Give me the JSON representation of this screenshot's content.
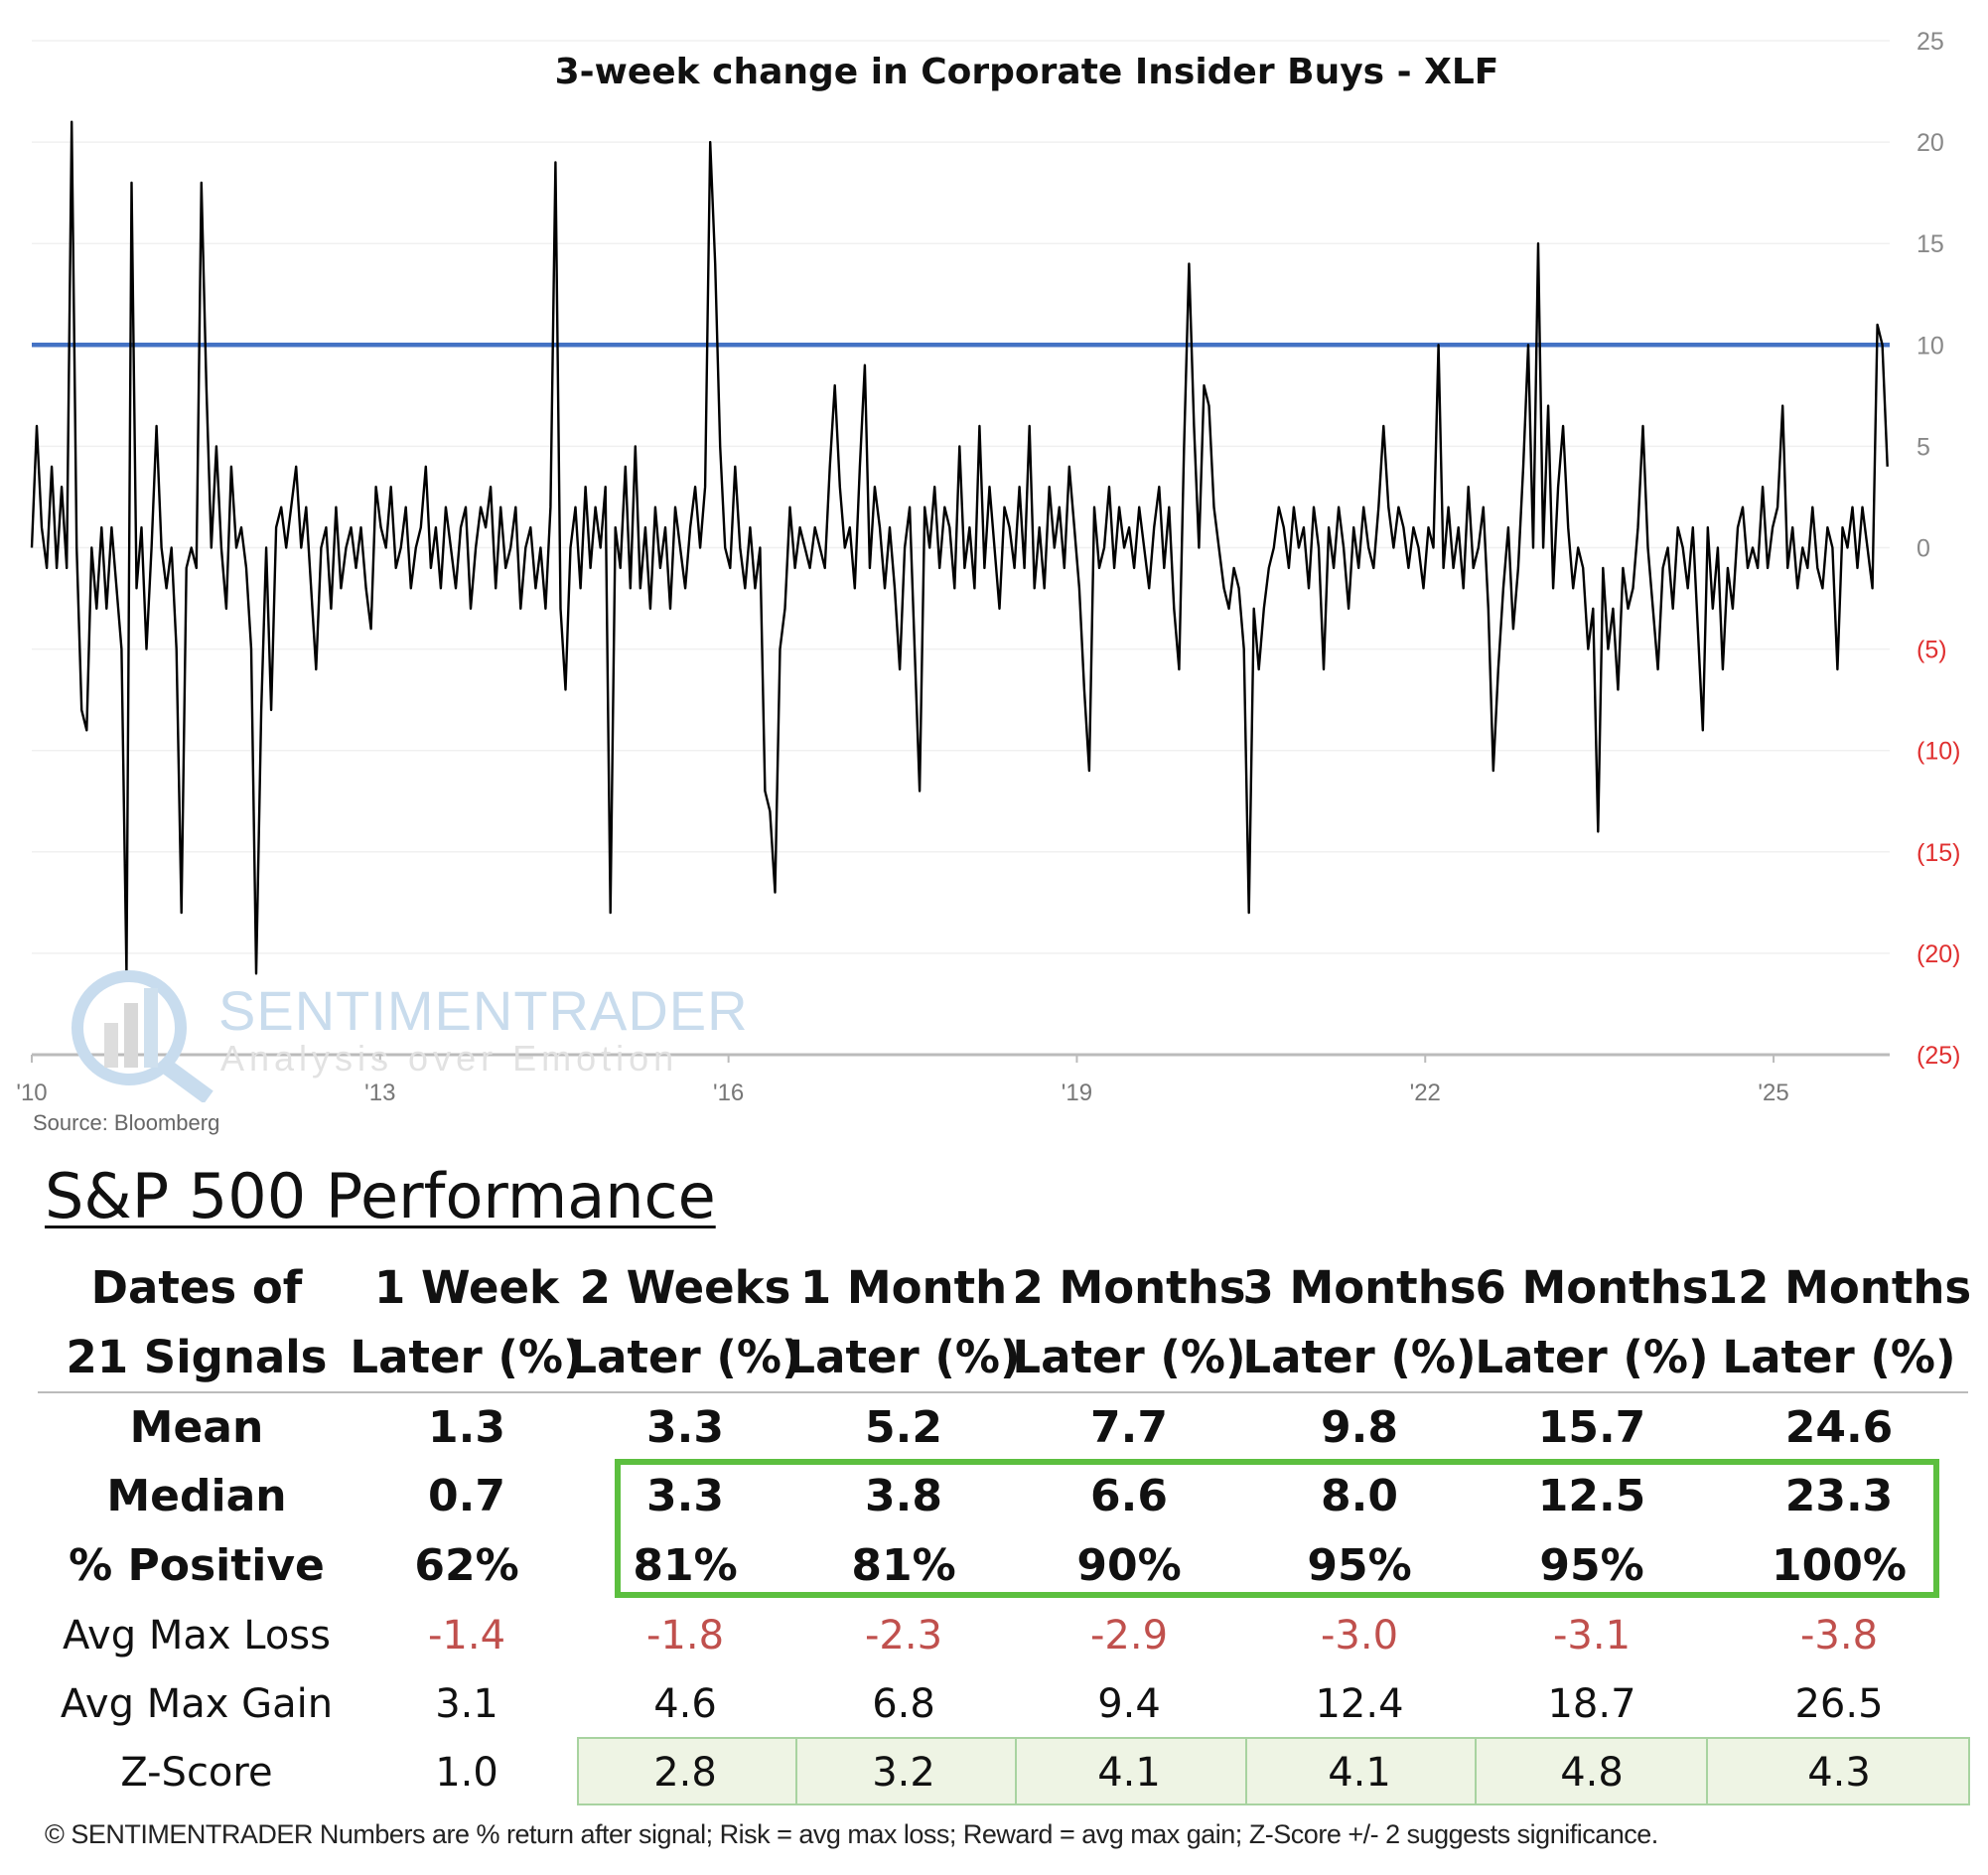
{
  "chart_data": {
    "type": "line",
    "title": "3-week change in Corporate Insider Buys - XLF",
    "xlabel": "",
    "ylabel": "",
    "x_start": 2010.0,
    "x_end": 2025.98,
    "xlim": [
      2010,
      2026
    ],
    "ylim": [
      -25,
      25
    ],
    "x_ticks": [
      {
        "value": 2010,
        "label": "'10"
      },
      {
        "value": 2013,
        "label": "'13"
      },
      {
        "value": 2016,
        "label": "'16"
      },
      {
        "value": 2019,
        "label": "'19"
      },
      {
        "value": 2022,
        "label": "'22"
      },
      {
        "value": 2025,
        "label": "'25"
      }
    ],
    "y_ticks": [
      {
        "value": 25,
        "label": "25"
      },
      {
        "value": 20,
        "label": "20"
      },
      {
        "value": 15,
        "label": "15"
      },
      {
        "value": 10,
        "label": "10"
      },
      {
        "value": 5,
        "label": "5"
      },
      {
        "value": 0,
        "label": "0"
      },
      {
        "value": -5,
        "label": "(5)"
      },
      {
        "value": -10,
        "label": "(10)"
      },
      {
        "value": -15,
        "label": "(15)"
      },
      {
        "value": -20,
        "label": "(20)"
      },
      {
        "value": -25,
        "label": "(25)"
      }
    ],
    "y_axis_side": "right",
    "grid": true,
    "threshold": {
      "value": 10,
      "color": "#4472c4"
    },
    "series": [
      {
        "name": "3-week change in Corporate Insider Buys - XLF",
        "color": "#000000",
        "values": [
          0,
          6,
          1,
          -1,
          4,
          -1,
          3,
          -1,
          21,
          0,
          -8,
          -9,
          0,
          -3,
          1,
          -3,
          1,
          -2,
          -5,
          -21,
          18,
          -2,
          1,
          -5,
          0,
          6,
          0,
          -2,
          0,
          -5,
          -18,
          -1,
          0,
          -1,
          18,
          8,
          0,
          5,
          0,
          -3,
          4,
          0,
          1,
          -1,
          -5,
          -21,
          -8,
          0,
          -8,
          1,
          2,
          0,
          2,
          4,
          0,
          2,
          -2,
          -6,
          0,
          1,
          -3,
          2,
          -2,
          0,
          1,
          -1,
          1,
          -2,
          -4,
          3,
          1,
          0,
          3,
          -1,
          0,
          2,
          -2,
          0,
          1,
          4,
          -1,
          1,
          -2,
          2,
          0,
          -2,
          1,
          2,
          -3,
          0,
          2,
          1,
          3,
          -2,
          2,
          -1,
          0,
          2,
          -3,
          0,
          1,
          -2,
          0,
          -3,
          2,
          19,
          -3,
          -7,
          0,
          2,
          -2,
          3,
          -1,
          2,
          0,
          3,
          -18,
          1,
          -1,
          4,
          -2,
          5,
          -2,
          1,
          -3,
          2,
          -1,
          1,
          -3,
          2,
          0,
          -2,
          1,
          3,
          0,
          3,
          20,
          14,
          5,
          0,
          -1,
          4,
          0,
          -2,
          1,
          -2,
          0,
          -12,
          -13,
          -17,
          -5,
          -3,
          2,
          -1,
          1,
          0,
          -1,
          1,
          0,
          -1,
          4,
          8,
          3,
          0,
          1,
          -2,
          4,
          9,
          -1,
          3,
          1,
          -2,
          1,
          -2,
          -6,
          0,
          2,
          -5,
          -12,
          2,
          0,
          3,
          -1,
          2,
          1,
          -2,
          5,
          -1,
          1,
          -2,
          6,
          -1,
          3,
          0,
          -3,
          2,
          1,
          -1,
          3,
          -1,
          6,
          -2,
          1,
          -2,
          3,
          0,
          2,
          -1,
          4,
          1,
          -2,
          -7,
          -11,
          2,
          -1,
          0,
          3,
          -1,
          2,
          0,
          1,
          -1,
          2,
          0,
          -2,
          1,
          3,
          -1,
          2,
          -3,
          -6,
          5,
          14,
          6,
          0,
          8,
          7,
          2,
          0,
          -2,
          -3,
          -1,
          -2,
          -5,
          -18,
          -3,
          -6,
          -3,
          -1,
          0,
          2,
          1,
          -1,
          2,
          0,
          1,
          -2,
          2,
          0,
          -6,
          1,
          -1,
          2,
          0,
          -3,
          1,
          -1,
          2,
          0,
          -1,
          2,
          6,
          2,
          0,
          2,
          1,
          -1,
          1,
          0,
          -2,
          1,
          0,
          10,
          -1,
          2,
          -1,
          1,
          -2,
          3,
          -1,
          0,
          2,
          -3,
          -11,
          -6,
          -2,
          1,
          -4,
          -1,
          4,
          10,
          0,
          15,
          0,
          7,
          -2,
          3,
          6,
          1,
          -2,
          0,
          -1,
          -5,
          -3,
          -14,
          -1,
          -5,
          -3,
          -7,
          -1,
          -3,
          -2,
          1,
          6,
          0,
          -3,
          -6,
          -1,
          0,
          -3,
          1,
          0,
          -2,
          1,
          -4,
          -9,
          1,
          -3,
          0,
          -6,
          -1,
          -3,
          1,
          2,
          -1,
          0,
          -1,
          3,
          -1,
          1,
          2,
          7,
          -1,
          1,
          -2,
          0,
          -1,
          2,
          -1,
          -2,
          1,
          0,
          -6,
          1,
          0,
          2,
          -1,
          2,
          0,
          -2,
          11,
          10,
          4
        ]
      }
    ],
    "source": "Source: Bloomberg",
    "watermark": {
      "brand": "SENTIMENTRADER",
      "tagline": "Analysis over Emotion"
    }
  },
  "performance": {
    "title": "S&P 500 Performance",
    "headers": [
      [
        "Dates of",
        "21 Signals"
      ],
      [
        "1 Week",
        "Later (%)"
      ],
      [
        "2 Weeks",
        "Later (%)"
      ],
      [
        "1 Month",
        "Later (%)"
      ],
      [
        "2 Months",
        "Later (%)"
      ],
      [
        "3 Months",
        "Later (%)"
      ],
      [
        "6 Months",
        "Later (%)"
      ],
      [
        "12 Months",
        "Later (%)"
      ]
    ],
    "rows": [
      {
        "label": "Mean",
        "values": [
          "1.3",
          "3.3",
          "5.2",
          "7.7",
          "9.8",
          "15.7",
          "24.6"
        ]
      },
      {
        "label": "Median",
        "values": [
          "0.7",
          "3.3",
          "3.8",
          "6.6",
          "8.0",
          "12.5",
          "23.3"
        ]
      },
      {
        "label": "% Positive",
        "values": [
          "62%",
          "81%",
          "81%",
          "90%",
          "95%",
          "95%",
          "100%"
        ]
      },
      {
        "label": "Avg Max Loss",
        "values": [
          "-1.4",
          "-1.8",
          "-2.3",
          "-2.9",
          "-3.0",
          "-3.1",
          "-3.8"
        ]
      },
      {
        "label": "Avg Max Gain",
        "values": [
          "3.1",
          "4.6",
          "6.8",
          "9.4",
          "12.4",
          "18.7",
          "26.5"
        ]
      },
      {
        "label": "Z-Score",
        "values": [
          "1.0",
          "2.8",
          "3.2",
          "4.1",
          "4.1",
          "4.8",
          "4.3"
        ]
      }
    ],
    "colors": {
      "negative": "#c0504d",
      "highlight_box": "#5cbf3f",
      "zscore_fill": "#eef4e4"
    },
    "footer": "© SENTIMENTRADER  Numbers are % return after signal; Risk = avg max loss; Reward = avg max gain; Z-Score +/- 2 suggests significance."
  }
}
